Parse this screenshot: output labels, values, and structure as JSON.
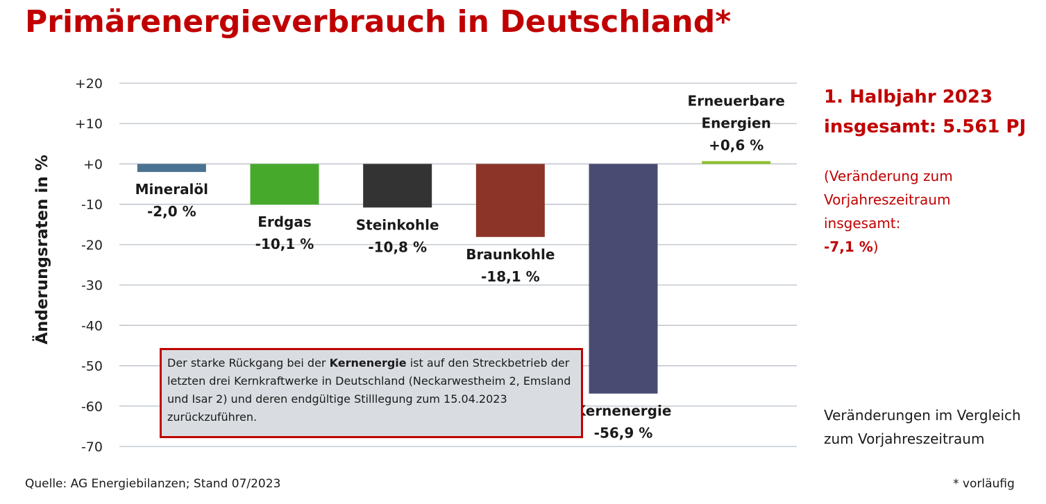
{
  "title": "Primärenergieverbrauch in Deutschland*",
  "side": {
    "heading_line1": "1. Halbjahr 2023",
    "heading_line2": "insgesamt: 5.561 PJ",
    "note_line1": "(Veränderung zum",
    "note_line2": "Vorjahreszeitraum",
    "note_line3": "insgesamt:",
    "note_value": "-7,1 %",
    "note_close": ")",
    "compare_line1": "Veränderungen im Vergleich",
    "compare_line2": "zum Vorjahreszeitraum"
  },
  "annotation": {
    "text_before": "Der starke Rückgang bei der ",
    "text_bold": "Kernenergie",
    "text_after": " ist auf den Streckbetrieb der letzten drei Kernkraftwerke in Deutschland (Neckarwestheim 2, Emsland und Isar 2) und deren endgültige Stilllegung zum 15.04.2023 zurückzuführen."
  },
  "source": "Quelle: AG Energiebilanzen; Stand 07/2023",
  "footnote": "* vorläufig",
  "chart_data": {
    "type": "bar",
    "ylabel": "Änderungsraten in %",
    "ylim": [
      -70,
      20
    ],
    "yticks": [
      20,
      10,
      0,
      -10,
      -20,
      -30,
      -40,
      -50,
      -60,
      -70
    ],
    "ytick_labels": [
      "+20",
      "+10",
      "+0",
      "-10",
      "-20",
      "-30",
      "-40",
      "-50",
      "-60",
      "-70"
    ],
    "grid": true,
    "categories": [
      "Mineralöl",
      "Erdgas",
      "Steinkohle",
      "Braunkohle",
      "Kernenergie",
      "Erneuerbare Energien"
    ],
    "category_label_lines": [
      [
        "Mineralöl"
      ],
      [
        "Erdgas"
      ],
      [
        "Steinkohle"
      ],
      [
        "Braunkohle"
      ],
      [
        "Kernenergie"
      ],
      [
        "Erneuerbare",
        "Energien"
      ]
    ],
    "values": [
      -2.0,
      -10.1,
      -10.8,
      -18.1,
      -56.9,
      0.6
    ],
    "value_labels": [
      "-2,0 %",
      "-10,1 %",
      "-10,8 %",
      "-18,1 %",
      "-56,9 %",
      "+0,6 %"
    ],
    "colors": [
      "#4a7391",
      "#47a92c",
      "#333333",
      "#8c3427",
      "#4a4b72",
      "#8cc02d"
    ]
  }
}
